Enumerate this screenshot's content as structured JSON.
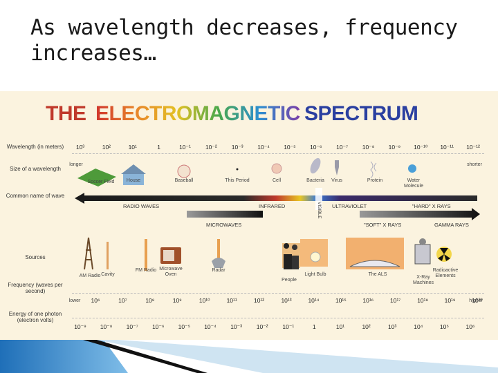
{
  "slide": {
    "title": "As wavelength decreases, frequency increases…"
  },
  "figure": {
    "title_parts": [
      {
        "text": "THE ",
        "color": "#c0392b"
      },
      {
        "text": "ELECTROMAGNETIC ",
        "color": "rainbow"
      },
      {
        "text": "SPECTRUM",
        "color": "#2a3fa0"
      }
    ],
    "row_labels": {
      "wavelength": "Wavelength (in meters)",
      "size": "Size of a wavelength",
      "common_name": "Common name of wave",
      "sources": "Sources",
      "frequency": "Frequency (waves per second)",
      "energy": "Energy of one photon (electron volts)"
    },
    "wavelength_ticks": [
      "10³",
      "10²",
      "10¹",
      "1",
      "10⁻¹",
      "10⁻²",
      "10⁻³",
      "10⁻⁴",
      "10⁻⁵",
      "10⁻⁶",
      "10⁻⁷",
      "10⁻⁸",
      "10⁻⁹",
      "10⁻¹⁰",
      "10⁻¹¹",
      "10⁻¹²"
    ],
    "longer_label": "longer",
    "shorter_label": "shorter",
    "size_items": [
      "Soccer Field",
      "House",
      "Baseball",
      "This Period",
      "Cell",
      "Bacteria",
      "Virus",
      "Protein",
      "Water Molecule"
    ],
    "wave_bands": {
      "radio": "RADIO WAVES",
      "infrared": "INFRARED",
      "visible": "VISIBLE",
      "ultraviolet": "ULTRAVIOLET",
      "hard_xrays": "\"HARD\" X RAYS",
      "microwaves": "MICROWAVES",
      "soft_xrays": "\"SOFT\" X RAYS",
      "gamma": "GAMMA RAYS"
    },
    "source_items": [
      "AM Radio",
      "Cavity",
      "FM Radio",
      "Microwave Oven",
      "Radar",
      "People",
      "Light Bulb",
      "The ALS",
      "X-Ray Machines",
      "Radioactive Elements"
    ],
    "frequency_ticks": [
      "10⁶",
      "10⁷",
      "10⁸",
      "10⁹",
      "10¹⁰",
      "10¹¹",
      "10¹²",
      "10¹³",
      "10¹⁴",
      "10¹⁵",
      "10¹⁶",
      "10¹⁷",
      "10¹⁸",
      "10¹⁹",
      "10²⁰"
    ],
    "lower_label": "lower",
    "higher_label": "higher",
    "energy_ticks": [
      "10⁻⁹",
      "10⁻⁸",
      "10⁻⁷",
      "10⁻⁶",
      "10⁻⁵",
      "10⁻⁴",
      "10⁻³",
      "10⁻²",
      "10⁻¹",
      "1",
      "10¹",
      "10²",
      "10³",
      "10⁴",
      "10⁵",
      "10⁶"
    ]
  }
}
